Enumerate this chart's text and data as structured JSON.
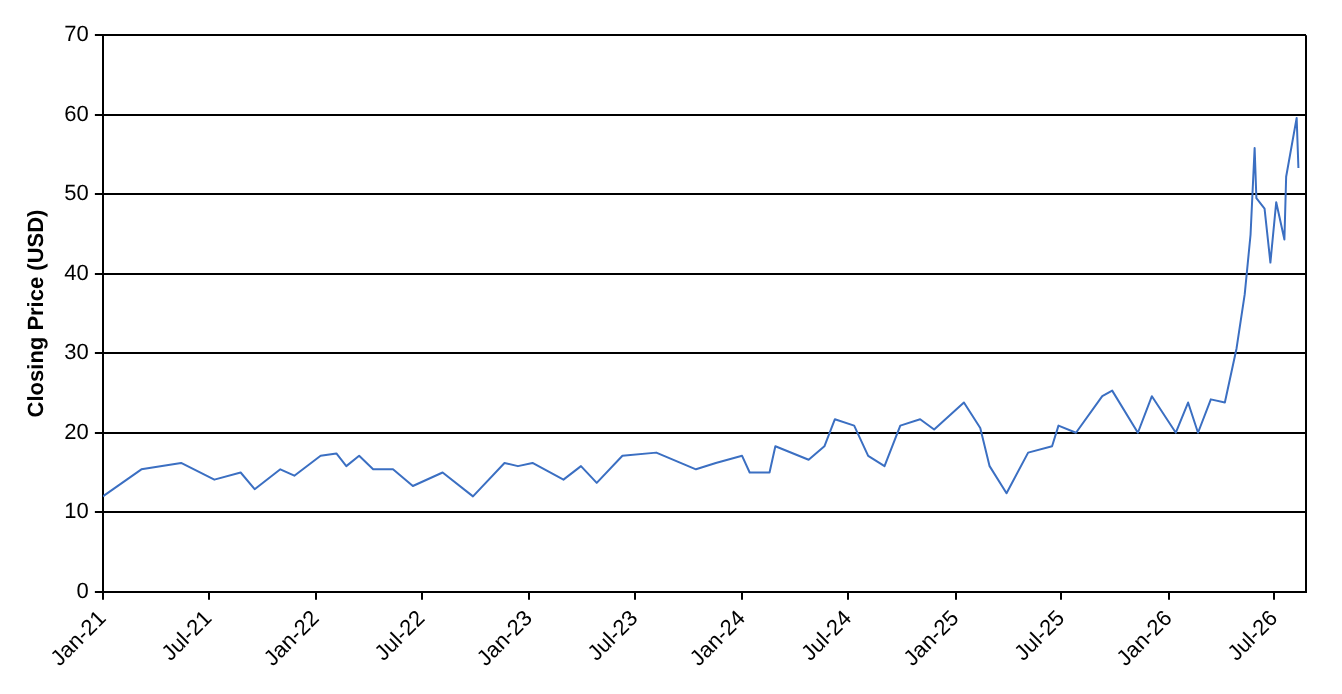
{
  "chart_data": {
    "type": "line",
    "ylabel": "Closing Price (USD)",
    "x": [
      "2021-01-01",
      "2021-03-08",
      "2021-05-15",
      "2021-07-11",
      "2021-08-25",
      "2021-09-18",
      "2021-11-01",
      "2021-11-25",
      "2022-01-09",
      "2022-02-05",
      "2022-02-22",
      "2022-03-16",
      "2022-04-09",
      "2022-05-13",
      "2022-06-16",
      "2022-08-06",
      "2022-09-27",
      "2022-11-20",
      "2022-12-13",
      "2023-01-07",
      "2023-03-01",
      "2023-03-31",
      "2023-04-27",
      "2023-06-10",
      "2023-08-07",
      "2023-10-14",
      "2023-11-17",
      "2024-01-01",
      "2024-01-14",
      "2024-02-17",
      "2024-02-27",
      "2024-04-24",
      "2024-05-21",
      "2024-06-08",
      "2024-07-11",
      "2024-08-04",
      "2024-09-01",
      "2024-09-28",
      "2024-11-01",
      "2024-11-25",
      "2025-01-15",
      "2025-02-12",
      "2025-02-28",
      "2025-03-29",
      "2025-05-05",
      "2025-06-15",
      "2025-06-26",
      "2025-07-26",
      "2025-09-09",
      "2025-09-26",
      "2025-11-09",
      "2025-12-03",
      "2026-01-13",
      "2026-02-03",
      "2026-02-20",
      "2026-03-14",
      "2026-04-07",
      "2026-04-27",
      "2026-05-11",
      "2026-05-21",
      "2026-05-28",
      "2026-05-31",
      "2026-06-14",
      "2026-06-24",
      "2026-07-04",
      "2026-07-18",
      "2026-07-21",
      "2026-08-08",
      "2026-08-11"
    ],
    "series": [
      {
        "color": "#3b6fc2",
        "values": [
          12.0,
          15.4,
          16.2,
          14.1,
          15.0,
          12.9,
          15.4,
          14.6,
          17.1,
          17.4,
          15.8,
          17.1,
          15.4,
          15.4,
          13.3,
          15.0,
          12.0,
          16.2,
          15.8,
          16.2,
          14.1,
          15.8,
          13.7,
          17.1,
          17.5,
          15.4,
          16.2,
          17.1,
          15.0,
          15.0,
          18.3,
          16.6,
          18.3,
          21.7,
          20.9,
          17.1,
          15.8,
          20.9,
          21.7,
          20.4,
          23.8,
          20.6,
          15.8,
          12.4,
          17.5,
          18.3,
          20.9,
          20.0,
          24.6,
          25.3,
          20.0,
          24.6,
          20.0,
          23.8,
          20.0,
          24.2,
          23.8,
          30.6,
          37.4,
          44.9,
          55.8,
          49.5,
          48.2,
          41.4,
          49.0,
          44.3,
          52.2,
          59.6,
          53.3
        ]
      }
    ],
    "xlim": [
      "2021-01-01",
      "2026-08-24"
    ],
    "xticks": [
      {
        "value": "2021-01-01",
        "label": "Jan-21"
      },
      {
        "value": "2021-07-01",
        "label": "Jul-21"
      },
      {
        "value": "2022-01-01",
        "label": "Jan-22"
      },
      {
        "value": "2022-07-01",
        "label": "Jul-22"
      },
      {
        "value": "2023-01-01",
        "label": "Jan-23"
      },
      {
        "value": "2023-07-01",
        "label": "Jul-23"
      },
      {
        "value": "2024-01-01",
        "label": "Jan-24"
      },
      {
        "value": "2024-07-01",
        "label": "Jul-24"
      },
      {
        "value": "2025-01-01",
        "label": "Jan-25"
      },
      {
        "value": "2025-07-01",
        "label": "Jul-25"
      },
      {
        "value": "2026-01-01",
        "label": "Jan-26"
      },
      {
        "value": "2026-07-01",
        "label": "Jul-26"
      }
    ],
    "ylim": [
      0,
      70
    ],
    "yticks": [
      0,
      10,
      20,
      30,
      40,
      50,
      60,
      70
    ],
    "grid": "y",
    "legend": false,
    "marker": "none",
    "line_style": "solid"
  }
}
